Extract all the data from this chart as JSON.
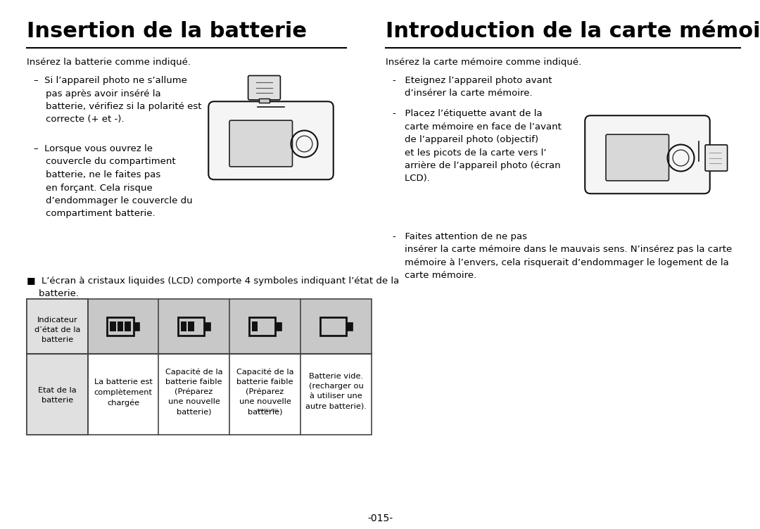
{
  "title_left": "Insertion de la batterie",
  "title_right": "Introduction de la carte mémoire",
  "subtitle_left": "Insérez la batterie comme indiqué.",
  "subtitle_right": "Insérez la carte mémoire comme indiqué.",
  "left_bullet1": "–  Si l’appareil photo ne s’allume\n    pas après avoir inséré la\n    batterie, vérifiez si la polarité est\n    correcte (+ et -).",
  "left_bullet2": "–  Lorsque vous ouvrez le\n    couvercle du compartiment\n    batterie, ne le faites pas\n    en forçant. Cela risque\n    d’endommager le couvercle du\n    compartiment batterie.",
  "right_bullet1": "-   Eteignez l’appareil photo avant\n    d’insérer la carte mémoire.",
  "right_bullet2": "-   Placez l’étiquette avant de la\n    carte mémoire en face de l’avant\n    de l’appareil photo (objectif)\n    et les picots de la carte vers l’\n    arrière de l’appareil photo (écran\n    LCD).",
  "right_bullet3_line1": "-   Faites attention de ne pas",
  "right_bullet3_rest": "    insérer la carte mémoire dans le mauvais sens. N’insérez pas la carte\n    mémoire à l’envers, cela risquerait d’endommager le logement de la\n    carte mémoire.",
  "note_text": "■  L’écran à cristaux liquides (LCD) comporte 4 symboles indiquant l’état de la\n    batterie.",
  "table_header_col0": "Indicateur\nd’état de la\nbatterie",
  "table_header_col0_row1": "Etat de la\nbatterie",
  "table_col1_row1": "La batterie est\ncomplètement\nchargée",
  "table_col2_row1": "Capacité de la\nbatterie faible\n(Préparez\nune nouvelle\nbatterie)",
  "table_col3_row1": "Capacité de la\nbatterie faible\n(Préparez\nune nouvelle\nbatterie)",
  "table_col4_row1": "Batterie vide.\n(recharger ou\nà utiliser une\nautre batterie).",
  "page_number": "-015-",
  "bg_color": "#ffffff",
  "text_color": "#000000",
  "table_header_bg": "#c8c8c8",
  "table_col0_bg": "#e0e0e0",
  "table_border_color": "#444444",
  "title_underline_color": "#000000"
}
